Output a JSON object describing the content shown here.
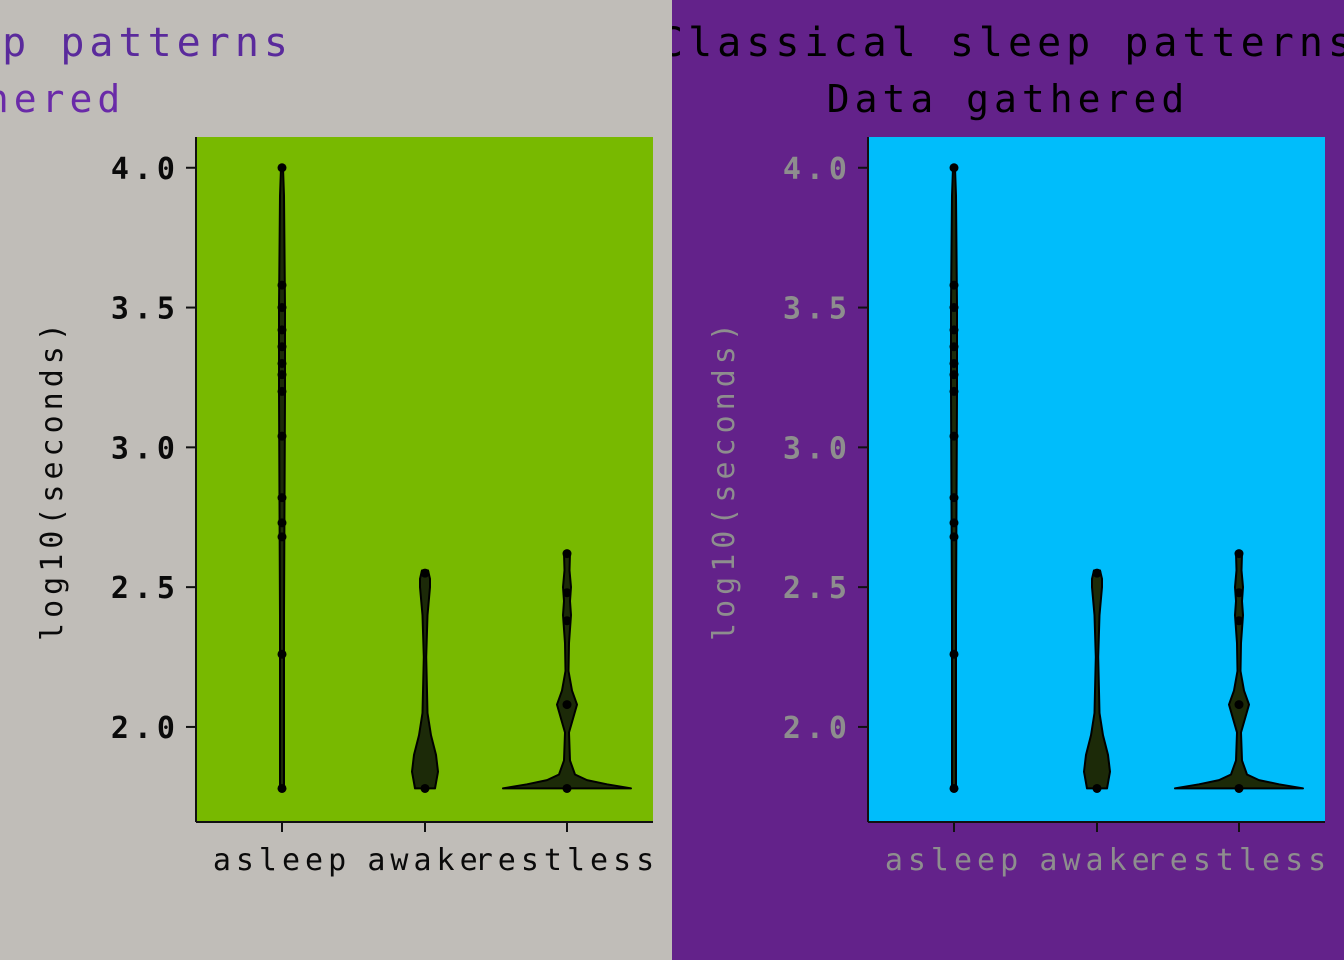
{
  "chart_data": [
    {
      "type": "violin",
      "title": "Classical sleep patterns",
      "subtitle": "Data gathered",
      "xlabel": "",
      "ylabel": "log10(seconds)",
      "ylim": [
        1.66,
        4.11
      ],
      "yticks": [
        2.0,
        2.5,
        3.0,
        3.5,
        4.0
      ],
      "tick_labels": [
        "2.0",
        "2.5",
        "3.0",
        "3.5",
        "4.0"
      ],
      "categories": [
        "asleep",
        "awake",
        "restless"
      ],
      "series": [
        {
          "category": "asleep",
          "points": [
            1.78,
            2.26,
            2.68,
            2.73,
            2.82,
            3.04,
            3.2,
            3.26,
            3.3,
            3.36,
            3.42,
            3.5,
            3.58,
            4.0
          ]
        },
        {
          "category": "awake",
          "points": [
            1.78,
            2.55
          ]
        },
        {
          "category": "restless",
          "points": [
            1.78,
            2.08,
            2.38,
            2.48,
            2.62
          ]
        }
      ],
      "grid": false,
      "colors": {
        "background": "#c0bdb8",
        "plot": "#78b900",
        "title": "#5a2a9c",
        "subtitle": "#6a2aa8",
        "tick": "#0a0a0a",
        "violin": "#1c2a08"
      }
    },
    {
      "type": "violin",
      "title": "Classical sleep patterns",
      "subtitle": "Data gathered",
      "xlabel": "",
      "ylabel": "log10(seconds)",
      "ylim": [
        1.66,
        4.11
      ],
      "yticks": [
        2.0,
        2.5,
        3.0,
        3.5,
        4.0
      ],
      "tick_labels": [
        "2.0",
        "2.5",
        "3.0",
        "3.5",
        "4.0"
      ],
      "categories": [
        "asleep",
        "awake",
        "restless"
      ],
      "series": [
        {
          "category": "asleep",
          "points": [
            1.78,
            2.26,
            2.68,
            2.73,
            2.82,
            3.04,
            3.2,
            3.26,
            3.3,
            3.36,
            3.42,
            3.5,
            3.58,
            4.0
          ]
        },
        {
          "category": "awake",
          "points": [
            1.78,
            2.55
          ]
        },
        {
          "category": "restless",
          "points": [
            1.78,
            2.08,
            2.38,
            2.48,
            2.62
          ]
        }
      ],
      "grid": false,
      "colors": {
        "background": "#63228a",
        "plot": "#00bdfb",
        "title": "#000000",
        "subtitle": "#000000",
        "tick": "#8e8e8e",
        "violin": "#1c2a08"
      }
    }
  ]
}
